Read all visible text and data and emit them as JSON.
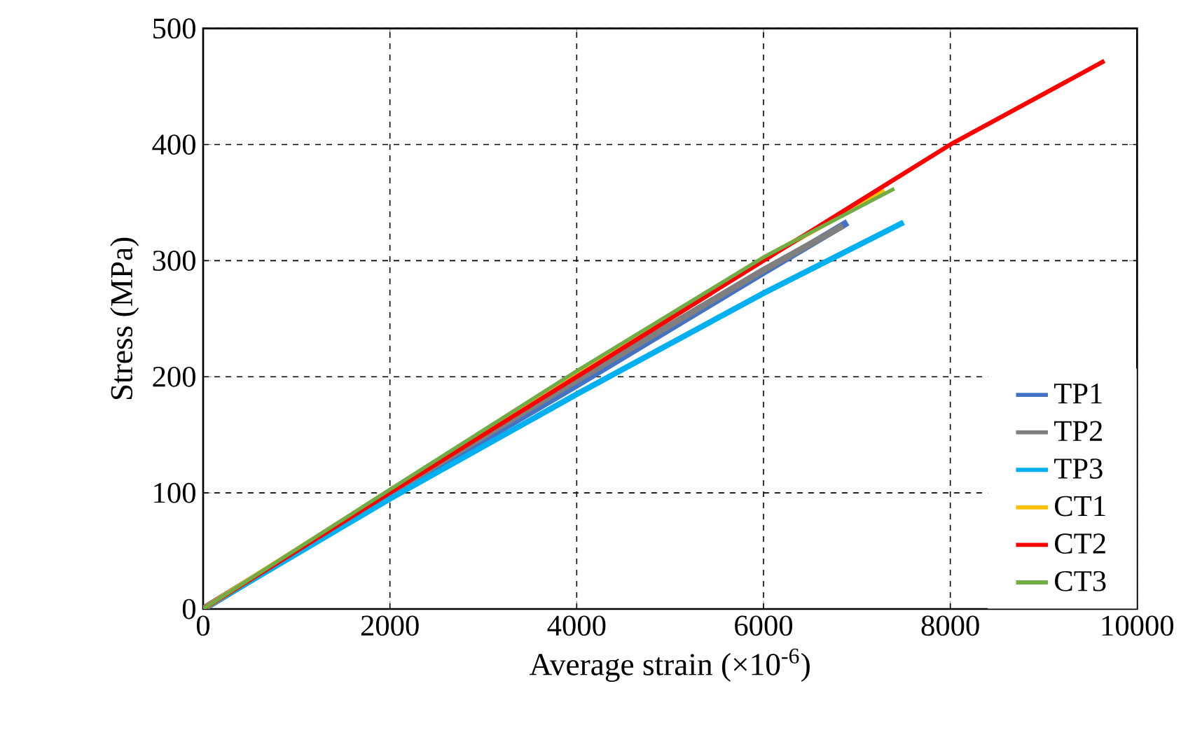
{
  "chart_data": {
    "type": "line",
    "xlabel": "Average strain (×10$^{-6}$)",
    "ylabel": "Stress (MPa)",
    "xlim": [
      0,
      10000
    ],
    "ylim": [
      0,
      500
    ],
    "xticks": [
      0,
      2000,
      4000,
      6000,
      8000,
      10000
    ],
    "yticks": [
      0,
      100,
      200,
      300,
      400,
      500
    ],
    "grid": true,
    "legend": "bottom right",
    "line_style": "solid",
    "marker": "none",
    "series": [
      {
        "name": "TP1",
        "color": "#4472c4",
        "x": [
          0,
          2000,
          4000,
          6000,
          6900
        ],
        "values": [
          0,
          98,
          193,
          290,
          333
        ]
      },
      {
        "name": "TP2",
        "color": "#7f7f7f",
        "x": [
          0,
          2000,
          4000,
          6000,
          6850
        ],
        "values": [
          0,
          100,
          197,
          292,
          330
        ]
      },
      {
        "name": "TP3",
        "color": "#00b0f0",
        "x": [
          0,
          2000,
          4000,
          6000,
          7500
        ],
        "values": [
          0,
          95,
          185,
          272,
          333
        ]
      },
      {
        "name": "CT1",
        "color": "#ffc000",
        "x": [
          0,
          2000,
          4000,
          6000,
          7300
        ],
        "values": [
          0,
          102,
          203,
          302,
          360
        ]
      },
      {
        "name": "CT2",
        "color": "#ff0000",
        "x": [
          0,
          2000,
          4000,
          6000,
          8000,
          9650
        ],
        "values": [
          0,
          100,
          200,
          300,
          400,
          472
        ]
      },
      {
        "name": "CT3",
        "color": "#70ad47",
        "x": [
          0,
          2000,
          4000,
          6000,
          7400
        ],
        "values": [
          0,
          103,
          205,
          303,
          362
        ]
      }
    ]
  }
}
